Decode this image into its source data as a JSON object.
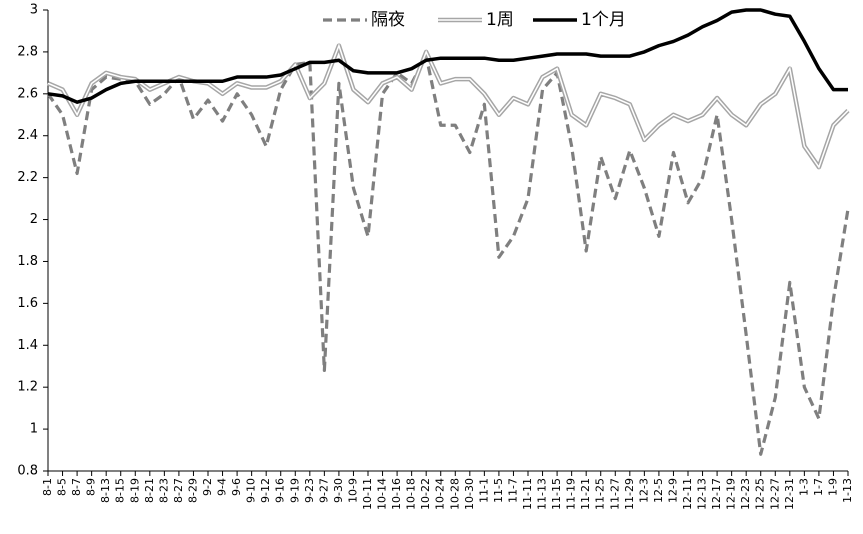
{
  "chart_data": {
    "type": "line",
    "categories": [
      "8-1",
      "8-5",
      "8-7",
      "8-9",
      "8-13",
      "8-15",
      "8-19",
      "8-21",
      "8-23",
      "8-27",
      "8-29",
      "9-2",
      "9-4",
      "9-6",
      "9-10",
      "9-12",
      "9-16",
      "9-19",
      "9-23",
      "9-27",
      "9-30",
      "10-9",
      "10-11",
      "10-14",
      "10-16",
      "10-18",
      "10-22",
      "10-24",
      "10-28",
      "10-30",
      "11-1",
      "11-5",
      "11-7",
      "11-11",
      "11-13",
      "11-15",
      "11-19",
      "11-21",
      "11-25",
      "11-27",
      "11-29",
      "12-3",
      "12-5",
      "12-9",
      "12-11",
      "12-13",
      "12-17",
      "12-19",
      "12-23",
      "12-25",
      "12-27",
      "12-31",
      "1-3",
      "1-7",
      "1-9",
      "1-13"
    ],
    "series": [
      {
        "name": "隔夜",
        "color": "#7f7f7f",
        "style": "dashed",
        "values": [
          2.6,
          2.5,
          2.22,
          2.62,
          2.68,
          2.67,
          2.66,
          2.55,
          2.6,
          2.68,
          2.48,
          2.57,
          2.47,
          2.6,
          2.5,
          2.35,
          2.62,
          2.74,
          2.75,
          1.28,
          2.65,
          2.15,
          1.92,
          2.6,
          2.7,
          2.65,
          2.78,
          2.45,
          2.45,
          2.32,
          2.55,
          1.82,
          1.92,
          2.1,
          2.62,
          2.7,
          2.35,
          1.85,
          2.3,
          2.1,
          2.33,
          2.15,
          1.92,
          2.32,
          2.08,
          2.2,
          2.5,
          2.0,
          1.45,
          0.88,
          1.15,
          1.7,
          1.2,
          1.05,
          1.62,
          2.05
        ]
      },
      {
        "name": "1周",
        "color": "#a6a6a6",
        "style": "double",
        "values": [
          2.65,
          2.62,
          2.5,
          2.65,
          2.7,
          2.68,
          2.67,
          2.62,
          2.65,
          2.68,
          2.66,
          2.65,
          2.6,
          2.65,
          2.63,
          2.63,
          2.66,
          2.74,
          2.58,
          2.65,
          2.83,
          2.62,
          2.56,
          2.65,
          2.68,
          2.62,
          2.8,
          2.65,
          2.67,
          2.67,
          2.6,
          2.5,
          2.58,
          2.55,
          2.68,
          2.72,
          2.5,
          2.45,
          2.6,
          2.58,
          2.55,
          2.38,
          2.45,
          2.5,
          2.47,
          2.5,
          2.58,
          2.5,
          2.45,
          2.55,
          2.6,
          2.72,
          2.35,
          2.25,
          2.45,
          2.52
        ]
      },
      {
        "name": "1个月",
        "color": "#000000",
        "style": "solid",
        "values": [
          2.6,
          2.59,
          2.56,
          2.58,
          2.62,
          2.65,
          2.66,
          2.66,
          2.66,
          2.66,
          2.66,
          2.66,
          2.66,
          2.68,
          2.68,
          2.68,
          2.69,
          2.72,
          2.75,
          2.75,
          2.76,
          2.71,
          2.7,
          2.7,
          2.7,
          2.72,
          2.76,
          2.77,
          2.77,
          2.77,
          2.77,
          2.76,
          2.76,
          2.77,
          2.78,
          2.79,
          2.79,
          2.79,
          2.78,
          2.78,
          2.78,
          2.8,
          2.83,
          2.85,
          2.88,
          2.92,
          2.95,
          2.99,
          3.0,
          3.0,
          2.98,
          2.97,
          2.85,
          2.72,
          2.62,
          2.62
        ]
      }
    ],
    "ylim": [
      0.8,
      3
    ],
    "yticks": [
      0.8,
      1,
      1.2,
      1.4,
      1.6,
      1.8,
      2,
      2.2,
      2.4,
      2.6,
      2.8,
      3
    ],
    "grid": false,
    "legend": "top"
  }
}
